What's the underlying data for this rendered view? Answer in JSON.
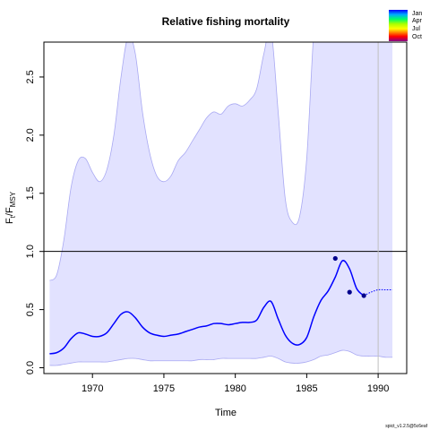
{
  "chart_data": {
    "type": "line",
    "title": "Relative fishing mortality",
    "xlabel": "Time",
    "ylabel": {
      "main": "F",
      "sub1": "t",
      "slash": "/F",
      "sub2": "MSY"
    },
    "xlim": [
      1966.6,
      1992.0
    ],
    "ylim": [
      -0.05,
      2.8
    ],
    "xticks": [
      1970,
      1975,
      1980,
      1985,
      1990
    ],
    "yticks": [
      0.0,
      0.5,
      1.0,
      1.5,
      2.0,
      2.5
    ],
    "x": [
      1967.0,
      1967.5,
      1968.0,
      1968.5,
      1969.0,
      1969.5,
      1970.0,
      1970.5,
      1971.0,
      1971.5,
      1972.0,
      1972.5,
      1973.0,
      1973.5,
      1974.0,
      1974.5,
      1975.0,
      1975.5,
      1976.0,
      1976.5,
      1977.0,
      1977.5,
      1978.0,
      1978.5,
      1979.0,
      1979.5,
      1980.0,
      1980.5,
      1981.0,
      1981.5,
      1982.0,
      1982.5,
      1983.0,
      1983.5,
      1984.0,
      1984.5,
      1985.0,
      1985.5,
      1986.0,
      1986.5,
      1987.0,
      1987.5,
      1988.0,
      1988.5,
      1989.0
    ],
    "estimate": [
      0.12,
      0.13,
      0.17,
      0.25,
      0.3,
      0.29,
      0.27,
      0.27,
      0.3,
      0.38,
      0.46,
      0.48,
      0.43,
      0.35,
      0.3,
      0.28,
      0.27,
      0.28,
      0.29,
      0.31,
      0.33,
      0.35,
      0.36,
      0.38,
      0.38,
      0.37,
      0.38,
      0.39,
      0.39,
      0.41,
      0.52,
      0.57,
      0.42,
      0.28,
      0.21,
      0.2,
      0.26,
      0.44,
      0.58,
      0.66,
      0.78,
      0.92,
      0.85,
      0.68,
      0.62
    ],
    "lower": [
      0.02,
      0.02,
      0.03,
      0.04,
      0.05,
      0.05,
      0.05,
      0.05,
      0.05,
      0.06,
      0.07,
      0.08,
      0.08,
      0.07,
      0.06,
      0.06,
      0.06,
      0.06,
      0.06,
      0.06,
      0.06,
      0.07,
      0.07,
      0.07,
      0.08,
      0.08,
      0.08,
      0.08,
      0.08,
      0.08,
      0.09,
      0.1,
      0.08,
      0.05,
      0.04,
      0.04,
      0.05,
      0.07,
      0.1,
      0.11,
      0.13,
      0.15,
      0.14,
      0.11,
      0.1
    ],
    "upper": [
      0.75,
      0.8,
      1.1,
      1.55,
      1.78,
      1.8,
      1.68,
      1.6,
      1.7,
      2.0,
      2.5,
      2.85,
      2.7,
      2.2,
      1.85,
      1.65,
      1.6,
      1.65,
      1.78,
      1.85,
      1.95,
      2.05,
      2.15,
      2.2,
      2.18,
      2.25,
      2.27,
      2.25,
      2.3,
      2.4,
      2.7,
      2.9,
      2.2,
      1.45,
      1.25,
      1.3,
      1.8,
      2.9,
      3.5,
      3.5,
      3.5,
      3.5,
      3.5,
      3.5,
      3.5
    ],
    "forecast": {
      "x": [
        1989.0,
        1989.5,
        1990.0,
        1990.5,
        1991.0
      ],
      "estimate": [
        0.62,
        0.65,
        0.67,
        0.67,
        0.67
      ],
      "lower": [
        0.1,
        0.1,
        0.1,
        0.09,
        0.09
      ],
      "upper": [
        3.5,
        3.5,
        3.5,
        3.5,
        3.5
      ]
    },
    "observations": [
      {
        "x": 1987.0,
        "y": 0.94
      },
      {
        "x": 1988.0,
        "y": 0.65
      },
      {
        "x": 1989.0,
        "y": 0.62
      }
    ],
    "reference_line_y": 1.0,
    "forecast_start_x": 1990.0,
    "legend": {
      "placement": "top-right",
      "labels": [
        "Jan",
        "Apr",
        "Jul",
        "Oct"
      ]
    },
    "colors": {
      "estimate": "#0000ff",
      "ci_fill": "#e2e2ff",
      "ci_border": "#a9a9f2",
      "observation": "#00008b",
      "reference": "#000000",
      "forecast_divider": "#c0c0c0"
    }
  },
  "footer_text": "spict_v1.2.5@5c6eaf"
}
